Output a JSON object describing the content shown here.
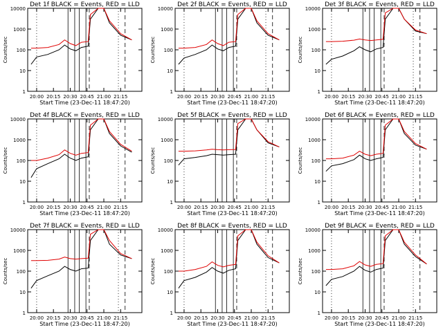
{
  "colors": {
    "events": "#000000",
    "lld": "#e00000",
    "axes": "#000000"
  },
  "chart_data": [
    {
      "type": "line",
      "title": "Det 1f BLACK = Events, RED = LLD",
      "xlabel": "Start Time (23-Dec-11 18:47:20)",
      "ylabel": "Counts/sec",
      "x_ticks": [
        "20:00",
        "20:15",
        "20:30",
        "20:45",
        "21:00",
        "21:15"
      ],
      "y_ticks": [
        "1",
        "10",
        "100",
        "1000",
        "10000"
      ],
      "ylim": [
        1,
        10000
      ],
      "yscale": "log",
      "grid": false,
      "series": [
        {
          "name": "Events",
          "x": [
            "19:55",
            "20:00",
            "20:10",
            "20:20",
            "20:25",
            "20:30",
            "20:35",
            "20:40",
            "20:46",
            "20:48",
            "20:55",
            "21:00",
            "21:05",
            "21:15",
            "21:25"
          ],
          "values": [
            20,
            45,
            60,
            100,
            170,
            110,
            90,
            130,
            150,
            3000,
            10000,
            10000,
            2000,
            500,
            300
          ]
        },
        {
          "name": "LLD",
          "x": [
            "19:55",
            "20:00",
            "20:10",
            "20:20",
            "20:25",
            "20:30",
            "20:35",
            "20:40",
            "20:46",
            "20:48",
            "20:55",
            "21:00",
            "21:05",
            "21:15",
            "21:25"
          ],
          "values": [
            120,
            120,
            130,
            180,
            300,
            200,
            160,
            230,
            250,
            5000,
            10000,
            10000,
            2500,
            600,
            300
          ]
        }
      ]
    },
    {
      "type": "line",
      "title": "Det 2f BLACK = Events, RED = LLD",
      "xlabel": "Start Time (23-Dec-11 18:47:20)",
      "ylabel": "Counts/sec",
      "x_ticks": [
        "20:00",
        "20:15",
        "20:30",
        "20:45",
        "21:00",
        "21:15"
      ],
      "y_ticks": [
        "1",
        "10",
        "100",
        "1000",
        "10000"
      ],
      "ylim": [
        1,
        10000
      ],
      "yscale": "log",
      "grid": false,
      "series": [
        {
          "name": "Events",
          "x": [
            "19:55",
            "20:00",
            "20:10",
            "20:20",
            "20:25",
            "20:30",
            "20:35",
            "20:40",
            "20:46",
            "20:48",
            "20:55",
            "21:00",
            "21:05",
            "21:15",
            "21:25"
          ],
          "values": [
            20,
            40,
            60,
            100,
            170,
            110,
            90,
            130,
            150,
            3000,
            10000,
            10000,
            2000,
            500,
            300
          ]
        },
        {
          "name": "LLD",
          "x": [
            "19:55",
            "20:00",
            "20:10",
            "20:20",
            "20:25",
            "20:30",
            "20:35",
            "20:40",
            "20:46",
            "20:48",
            "20:55",
            "21:00",
            "21:05",
            "21:15",
            "21:25"
          ],
          "values": [
            120,
            120,
            130,
            180,
            300,
            200,
            160,
            230,
            250,
            5000,
            10000,
            10000,
            2500,
            600,
            300
          ]
        }
      ]
    },
    {
      "type": "line",
      "title": "Det 3f BLACK = Events, RED = LLD",
      "xlabel": "Start Time (23-Dec-11 18:47:20)",
      "ylabel": "Counts/sec",
      "x_ticks": [
        "20:00",
        "20:15",
        "20:30",
        "20:45",
        "21:00",
        "21:15"
      ],
      "y_ticks": [
        "1",
        "10",
        "100",
        "1000",
        "10000"
      ],
      "ylim": [
        1,
        10000
      ],
      "yscale": "log",
      "grid": false,
      "series": [
        {
          "name": "Events",
          "x": [
            "19:55",
            "20:00",
            "20:10",
            "20:20",
            "20:25",
            "20:30",
            "20:35",
            "20:40",
            "20:46",
            "20:48",
            "20:55",
            "21:00",
            "21:05",
            "21:15",
            "21:25"
          ],
          "values": [
            20,
            35,
            50,
            90,
            140,
            100,
            80,
            110,
            130,
            3000,
            10000,
            10000,
            3000,
            800,
            600
          ]
        },
        {
          "name": "LLD",
          "x": [
            "19:55",
            "20:00",
            "20:10",
            "20:20",
            "20:25",
            "20:30",
            "20:35",
            "20:40",
            "20:46",
            "20:48",
            "20:55",
            "21:00",
            "21:05",
            "21:15",
            "21:25"
          ],
          "values": [
            250,
            250,
            260,
            290,
            330,
            300,
            280,
            300,
            320,
            6000,
            10000,
            10000,
            3000,
            900,
            600
          ]
        }
      ]
    },
    {
      "type": "line",
      "title": "Det 4f BLACK = Events, RED = LLD",
      "xlabel": "Start Time (23-Dec-11 18:47:20)",
      "ylabel": "Counts/sec",
      "x_ticks": [
        "20:00",
        "20:15",
        "20:30",
        "20:45",
        "21:00",
        "21:15"
      ],
      "y_ticks": [
        "1",
        "10",
        "100",
        "1000",
        "10000"
      ],
      "ylim": [
        1,
        10000
      ],
      "yscale": "log",
      "grid": false,
      "series": [
        {
          "name": "Events",
          "x": [
            "19:55",
            "20:00",
            "20:10",
            "20:20",
            "20:25",
            "20:30",
            "20:35",
            "20:40",
            "20:46",
            "20:48",
            "20:55",
            "21:00",
            "21:05",
            "21:15",
            "21:25"
          ],
          "values": [
            15,
            40,
            70,
            120,
            200,
            130,
            100,
            130,
            150,
            3000,
            10000,
            10000,
            2000,
            500,
            250
          ]
        },
        {
          "name": "LLD",
          "x": [
            "19:55",
            "20:00",
            "20:10",
            "20:20",
            "20:25",
            "20:30",
            "20:35",
            "20:40",
            "20:46",
            "20:48",
            "20:55",
            "21:00",
            "21:05",
            "21:15",
            "21:25"
          ],
          "values": [
            100,
            100,
            130,
            190,
            320,
            220,
            180,
            220,
            240,
            5000,
            10000,
            10000,
            2500,
            600,
            280
          ]
        }
      ]
    },
    {
      "type": "line",
      "title": "Det 5f BLACK = Events, RED = LLD",
      "xlabel": "Start Time (23-Dec-11 18:47:20)",
      "ylabel": "Counts/sec",
      "x_ticks": [
        "20:00",
        "20:15",
        "20:30",
        "20:45",
        "21:00",
        "21:15"
      ],
      "y_ticks": [
        "1",
        "10",
        "100",
        "1000",
        "10000"
      ],
      "ylim": [
        1,
        10000
      ],
      "yscale": "log",
      "grid": false,
      "series": [
        {
          "name": "Events",
          "x": [
            "19:55",
            "20:00",
            "20:10",
            "20:20",
            "20:25",
            "20:30",
            "20:35",
            "20:40",
            "20:46",
            "20:48",
            "20:55",
            "21:00",
            "21:05",
            "21:15",
            "21:25"
          ],
          "values": [
            60,
            120,
            140,
            170,
            200,
            190,
            180,
            190,
            200,
            3000,
            10000,
            10000,
            3000,
            700,
            450
          ]
        },
        {
          "name": "LLD",
          "x": [
            "19:55",
            "20:00",
            "20:10",
            "20:20",
            "20:25",
            "20:30",
            "20:35",
            "20:40",
            "20:46",
            "20:48",
            "20:55",
            "21:00",
            "21:05",
            "21:15",
            "21:25"
          ],
          "values": [
            280,
            280,
            290,
            320,
            350,
            330,
            320,
            330,
            340,
            6000,
            10000,
            10000,
            3000,
            800,
            450
          ]
        }
      ]
    },
    {
      "type": "line",
      "title": "Det 6f BLACK = Events, RED = LLD",
      "xlabel": "Start Time (23-Dec-11 18:47:20)",
      "ylabel": "Counts/sec",
      "x_ticks": [
        "20:00",
        "20:15",
        "20:30",
        "20:45",
        "21:00",
        "21:15"
      ],
      "y_ticks": [
        "1",
        "10",
        "100",
        "1000",
        "10000"
      ],
      "ylim": [
        1,
        10000
      ],
      "yscale": "log",
      "grid": false,
      "series": [
        {
          "name": "Events",
          "x": [
            "19:55",
            "20:00",
            "20:10",
            "20:20",
            "20:25",
            "20:30",
            "20:35",
            "20:40",
            "20:46",
            "20:48",
            "20:55",
            "21:00",
            "21:05",
            "21:15",
            "21:25"
          ],
          "values": [
            30,
            55,
            70,
            110,
            180,
            120,
            100,
            120,
            140,
            3000,
            10000,
            10000,
            2000,
            550,
            350
          ]
        },
        {
          "name": "LLD",
          "x": [
            "19:55",
            "20:00",
            "20:10",
            "20:20",
            "20:25",
            "20:30",
            "20:35",
            "20:40",
            "20:46",
            "20:48",
            "20:55",
            "21:00",
            "21:05",
            "21:15",
            "21:25"
          ],
          "values": [
            120,
            120,
            130,
            180,
            280,
            200,
            170,
            200,
            220,
            5000,
            10000,
            10000,
            2500,
            650,
            350
          ]
        }
      ]
    },
    {
      "type": "line",
      "title": "Det 7f BLACK = Events, RED = LLD",
      "xlabel": "Start Time (23-Dec-11 18:47:20)",
      "ylabel": "Counts/sec",
      "x_ticks": [
        "20:00",
        "20:15",
        "20:30",
        "20:45",
        "21:00",
        "21:15"
      ],
      "y_ticks": [
        "1",
        "10",
        "100",
        "1000",
        "10000"
      ],
      "ylim": [
        1,
        10000
      ],
      "yscale": "log",
      "grid": false,
      "series": [
        {
          "name": "Events",
          "x": [
            "19:55",
            "20:00",
            "20:10",
            "20:20",
            "20:25",
            "20:30",
            "20:35",
            "20:40",
            "20:46",
            "20:48",
            "20:55",
            "21:00",
            "21:05",
            "21:15",
            "21:25"
          ],
          "values": [
            15,
            35,
            60,
            100,
            170,
            120,
            100,
            130,
            140,
            3000,
            10000,
            10000,
            2000,
            600,
            400
          ]
        },
        {
          "name": "LLD",
          "x": [
            "19:55",
            "20:00",
            "20:10",
            "20:20",
            "20:25",
            "20:30",
            "20:35",
            "20:40",
            "20:46",
            "20:48",
            "20:55",
            "21:00",
            "21:05",
            "21:15",
            "21:25"
          ],
          "values": [
            320,
            320,
            330,
            380,
            480,
            400,
            380,
            400,
            420,
            6000,
            10000,
            10000,
            3000,
            700,
            400
          ]
        }
      ]
    },
    {
      "type": "line",
      "title": "Det 8f BLACK = Events, RED = LLD",
      "xlabel": "Start Time (23-Dec-11 18:47:20)",
      "ylabel": "Counts/sec",
      "x_ticks": [
        "20:00",
        "20:15",
        "20:30",
        "20:45",
        "21:00",
        "21:15"
      ],
      "y_ticks": [
        "1",
        "10",
        "100",
        "1000",
        "10000"
      ],
      "ylim": [
        1,
        10000
      ],
      "yscale": "log",
      "grid": false,
      "series": [
        {
          "name": "Events",
          "x": [
            "19:55",
            "20:00",
            "20:10",
            "20:20",
            "20:25",
            "20:30",
            "20:35",
            "20:40",
            "20:46",
            "20:48",
            "20:55",
            "21:00",
            "21:05",
            "21:15",
            "21:25"
          ],
          "values": [
            15,
            35,
            50,
            90,
            150,
            100,
            80,
            110,
            130,
            3000,
            10000,
            10000,
            2000,
            450,
            250
          ]
        },
        {
          "name": "LLD",
          "x": [
            "19:55",
            "20:00",
            "20:10",
            "20:20",
            "20:25",
            "20:30",
            "20:35",
            "20:40",
            "20:46",
            "20:48",
            "20:55",
            "21:00",
            "21:05",
            "21:15",
            "21:25"
          ],
          "values": [
            100,
            100,
            120,
            170,
            280,
            190,
            160,
            190,
            210,
            5000,
            10000,
            10000,
            2500,
            550,
            250
          ]
        }
      ]
    },
    {
      "type": "line",
      "title": "Det 9f BLACK = Events, RED = LLD",
      "xlabel": "Start Time (23-Dec-11 18:47:20)",
      "ylabel": "Counts/sec",
      "x_ticks": [
        "20:00",
        "20:15",
        "20:30",
        "20:45",
        "21:00",
        "21:15"
      ],
      "y_ticks": [
        "1",
        "10",
        "100",
        "1000",
        "10000"
      ],
      "ylim": [
        1,
        10000
      ],
      "yscale": "log",
      "grid": false,
      "series": [
        {
          "name": "Events",
          "x": [
            "19:55",
            "20:00",
            "20:10",
            "20:20",
            "20:25",
            "20:30",
            "20:35",
            "20:40",
            "20:46",
            "20:48",
            "20:55",
            "21:00",
            "21:05",
            "21:15",
            "21:25"
          ],
          "values": [
            20,
            40,
            55,
            100,
            170,
            110,
            90,
            120,
            140,
            3000,
            10000,
            10000,
            2000,
            500,
            220
          ]
        },
        {
          "name": "LLD",
          "x": [
            "19:55",
            "20:00",
            "20:10",
            "20:20",
            "20:25",
            "20:30",
            "20:35",
            "20:40",
            "20:46",
            "20:48",
            "20:55",
            "21:00",
            "21:05",
            "21:15",
            "21:25"
          ],
          "values": [
            120,
            120,
            130,
            180,
            290,
            200,
            170,
            210,
            230,
            5000,
            10000,
            10000,
            2500,
            600,
            220
          ]
        }
      ]
    }
  ]
}
